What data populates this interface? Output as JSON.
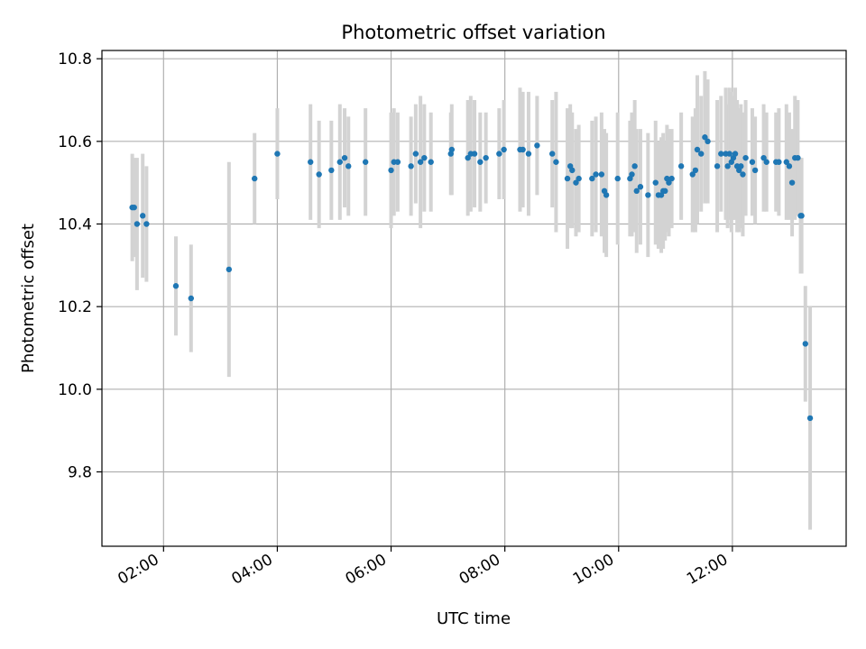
{
  "chart_data": {
    "type": "scatter",
    "title": "Photometric offset variation",
    "xlabel": "UTC time",
    "ylabel": "Photometric offset",
    "xlim": [
      "00:55",
      "14:00"
    ],
    "ylim": [
      9.62,
      10.82
    ],
    "xticks": [
      "02:00",
      "04:00",
      "06:00",
      "08:00",
      "10:00",
      "12:00"
    ],
    "yticks": [
      "9.8",
      "10.0",
      "10.2",
      "10.4",
      "10.6",
      "10.8"
    ],
    "grid": true,
    "colors": {
      "points": "#1f77b4",
      "errorbars": "#d3d3d3",
      "grid": "#b0b0b0"
    },
    "points": [
      {
        "t": "01:27",
        "y": 10.44,
        "err": 0.13
      },
      {
        "t": "01:29",
        "y": 10.44,
        "err": 0.12
      },
      {
        "t": "01:32",
        "y": 10.4,
        "err": 0.16
      },
      {
        "t": "01:38",
        "y": 10.42,
        "err": 0.15
      },
      {
        "t": "01:42",
        "y": 10.4,
        "err": 0.14
      },
      {
        "t": "02:13",
        "y": 10.25,
        "err": 0.12
      },
      {
        "t": "02:29",
        "y": 10.22,
        "err": 0.13
      },
      {
        "t": "03:09",
        "y": 10.29,
        "err": 0.26
      },
      {
        "t": "03:36",
        "y": 10.51,
        "err": 0.11
      },
      {
        "t": "04:00",
        "y": 10.57,
        "err": 0.11
      },
      {
        "t": "04:35",
        "y": 10.55,
        "err": 0.14
      },
      {
        "t": "04:44",
        "y": 10.52,
        "err": 0.13
      },
      {
        "t": "04:57",
        "y": 10.53,
        "err": 0.12
      },
      {
        "t": "05:06",
        "y": 10.55,
        "err": 0.14
      },
      {
        "t": "05:11",
        "y": 10.56,
        "err": 0.12
      },
      {
        "t": "05:15",
        "y": 10.54,
        "err": 0.12
      },
      {
        "t": "05:33",
        "y": 10.55,
        "err": 0.13
      },
      {
        "t": "06:00",
        "y": 10.53,
        "err": 0.14
      },
      {
        "t": "06:03",
        "y": 10.55,
        "err": 0.13
      },
      {
        "t": "06:07",
        "y": 10.55,
        "err": 0.12
      },
      {
        "t": "06:21",
        "y": 10.54,
        "err": 0.12
      },
      {
        "t": "06:26",
        "y": 10.57,
        "err": 0.12
      },
      {
        "t": "06:31",
        "y": 10.55,
        "err": 0.16
      },
      {
        "t": "06:35",
        "y": 10.56,
        "err": 0.13
      },
      {
        "t": "06:42",
        "y": 10.55,
        "err": 0.12
      },
      {
        "t": "07:03",
        "y": 10.57,
        "err": 0.1
      },
      {
        "t": "07:04",
        "y": 10.58,
        "err": 0.11
      },
      {
        "t": "07:21",
        "y": 10.56,
        "err": 0.14
      },
      {
        "t": "07:24",
        "y": 10.57,
        "err": 0.14
      },
      {
        "t": "07:28",
        "y": 10.57,
        "err": 0.13
      },
      {
        "t": "07:34",
        "y": 10.55,
        "err": 0.12
      },
      {
        "t": "07:40",
        "y": 10.56,
        "err": 0.11
      },
      {
        "t": "07:54",
        "y": 10.57,
        "err": 0.11
      },
      {
        "t": "07:59",
        "y": 10.58,
        "err": 0.12
      },
      {
        "t": "08:16",
        "y": 10.58,
        "err": 0.15
      },
      {
        "t": "08:19",
        "y": 10.58,
        "err": 0.14
      },
      {
        "t": "08:25",
        "y": 10.57,
        "err": 0.15
      },
      {
        "t": "08:34",
        "y": 10.59,
        "err": 0.12
      },
      {
        "t": "08:50",
        "y": 10.57,
        "err": 0.13
      },
      {
        "t": "08:54",
        "y": 10.55,
        "err": 0.17
      },
      {
        "t": "09:06",
        "y": 10.51,
        "err": 0.17
      },
      {
        "t": "09:09",
        "y": 10.54,
        "err": 0.15
      },
      {
        "t": "09:11",
        "y": 10.53,
        "err": 0.14
      },
      {
        "t": "09:15",
        "y": 10.5,
        "err": 0.13
      },
      {
        "t": "09:18",
        "y": 10.51,
        "err": 0.13
      },
      {
        "t": "09:32",
        "y": 10.51,
        "err": 0.14
      },
      {
        "t": "09:36",
        "y": 10.52,
        "err": 0.14
      },
      {
        "t": "09:42",
        "y": 10.52,
        "err": 0.15
      },
      {
        "t": "09:45",
        "y": 10.48,
        "err": 0.15
      },
      {
        "t": "09:47",
        "y": 10.47,
        "err": 0.15
      },
      {
        "t": "09:59",
        "y": 10.51,
        "err": 0.16
      },
      {
        "t": "10:12",
        "y": 10.51,
        "err": 0.14
      },
      {
        "t": "10:14",
        "y": 10.52,
        "err": 0.15
      },
      {
        "t": "10:17",
        "y": 10.54,
        "err": 0.16
      },
      {
        "t": "10:19",
        "y": 10.48,
        "err": 0.15
      },
      {
        "t": "10:23",
        "y": 10.49,
        "err": 0.14
      },
      {
        "t": "10:31",
        "y": 10.47,
        "err": 0.15
      },
      {
        "t": "10:39",
        "y": 10.5,
        "err": 0.15
      },
      {
        "t": "10:42",
        "y": 10.47,
        "err": 0.13
      },
      {
        "t": "10:45",
        "y": 10.47,
        "err": 0.14
      },
      {
        "t": "10:47",
        "y": 10.48,
        "err": 0.14
      },
      {
        "t": "10:49",
        "y": 10.48,
        "err": 0.12
      },
      {
        "t": "10:51",
        "y": 10.51,
        "err": 0.13
      },
      {
        "t": "10:53",
        "y": 10.5,
        "err": 0.13
      },
      {
        "t": "10:56",
        "y": 10.51,
        "err": 0.12
      },
      {
        "t": "11:06",
        "y": 10.54,
        "err": 0.13
      },
      {
        "t": "11:18",
        "y": 10.52,
        "err": 0.14
      },
      {
        "t": "11:21",
        "y": 10.53,
        "err": 0.15
      },
      {
        "t": "11:23",
        "y": 10.58,
        "err": 0.18
      },
      {
        "t": "11:27",
        "y": 10.57,
        "err": 0.14
      },
      {
        "t": "11:31",
        "y": 10.61,
        "err": 0.16
      },
      {
        "t": "11:34",
        "y": 10.6,
        "err": 0.15
      },
      {
        "t": "11:44",
        "y": 10.54,
        "err": 0.16
      },
      {
        "t": "11:48",
        "y": 10.57,
        "err": 0.14
      },
      {
        "t": "11:53",
        "y": 10.57,
        "err": 0.16
      },
      {
        "t": "11:55",
        "y": 10.54,
        "err": 0.15
      },
      {
        "t": "11:57",
        "y": 10.57,
        "err": 0.16
      },
      {
        "t": "11:59",
        "y": 10.55,
        "err": 0.17
      },
      {
        "t": "12:01",
        "y": 10.56,
        "err": 0.15
      },
      {
        "t": "12:03",
        "y": 10.57,
        "err": 0.16
      },
      {
        "t": "12:05",
        "y": 10.54,
        "err": 0.16
      },
      {
        "t": "12:07",
        "y": 10.53,
        "err": 0.15
      },
      {
        "t": "12:09",
        "y": 10.54,
        "err": 0.15
      },
      {
        "t": "12:11",
        "y": 10.52,
        "err": 0.15
      },
      {
        "t": "12:14",
        "y": 10.56,
        "err": 0.14
      },
      {
        "t": "12:21",
        "y": 10.55,
        "err": 0.13
      },
      {
        "t": "12:24",
        "y": 10.53,
        "err": 0.13
      },
      {
        "t": "12:33",
        "y": 10.56,
        "err": 0.13
      },
      {
        "t": "12:36",
        "y": 10.55,
        "err": 0.12
      },
      {
        "t": "12:46",
        "y": 10.55,
        "err": 0.12
      },
      {
        "t": "12:49",
        "y": 10.55,
        "err": 0.13
      },
      {
        "t": "12:57",
        "y": 10.55,
        "err": 0.14
      },
      {
        "t": "13:00",
        "y": 10.54,
        "err": 0.13
      },
      {
        "t": "13:03",
        "y": 10.5,
        "err": 0.13
      },
      {
        "t": "13:06",
        "y": 10.56,
        "err": 0.15
      },
      {
        "t": "13:09",
        "y": 10.56,
        "err": 0.14
      },
      {
        "t": "13:12",
        "y": 10.42,
        "err": 0.14
      },
      {
        "t": "13:13",
        "y": 10.42,
        "err": 0.14
      },
      {
        "t": "13:17",
        "y": 10.11,
        "err": 0.14
      },
      {
        "t": "13:22",
        "y": 9.93,
        "err": 0.27
      }
    ]
  }
}
